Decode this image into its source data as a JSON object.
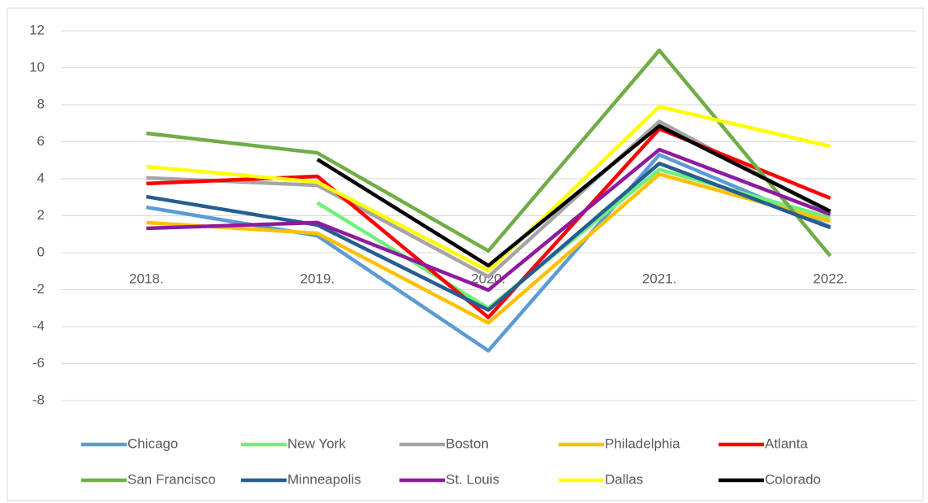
{
  "chart_data": {
    "type": "line",
    "categories": [
      "2018.",
      "2019.",
      "2020.",
      "2021.",
      "2022."
    ],
    "series": [
      {
        "name": "Chicago",
        "color": "#5b9bd5",
        "values": [
          2.46,
          0.92,
          -5.3,
          5.3,
          1.4
        ]
      },
      {
        "name": "New York",
        "color": "#70f07a",
        "values": [
          null,
          2.7,
          -3.0,
          4.5,
          1.9
        ]
      },
      {
        "name": "Boston",
        "color": "#a5a5a5",
        "values": [
          4.05,
          3.65,
          -1.3,
          7.1,
          2.15
        ]
      },
      {
        "name": "Philadelphia",
        "color": "#ffc000",
        "values": [
          1.63,
          1.05,
          -3.8,
          4.25,
          1.7
        ]
      },
      {
        "name": "Atlanta",
        "color": "#ff0000",
        "values": [
          3.74,
          4.13,
          -3.5,
          6.7,
          2.95
        ]
      },
      {
        "name": "San Francisco",
        "color": "#70ad47",
        "values": [
          6.46,
          5.4,
          0.1,
          10.95,
          -0.18
        ]
      },
      {
        "name": "Minneapolis",
        "color": "#255e91",
        "values": [
          3.03,
          1.5,
          -3.1,
          4.83,
          1.36
        ]
      },
      {
        "name": "St. Louis",
        "color": "#8e1a9e",
        "values": [
          1.32,
          1.63,
          -2.02,
          5.58,
          2.07
        ]
      },
      {
        "name": "Dallas",
        "color": "#ffff00",
        "values": [
          4.66,
          3.82,
          -0.97,
          7.9,
          5.76
        ]
      },
      {
        "name": "Colorado",
        "color": "#000000",
        "values": [
          null,
          5.05,
          -0.7,
          6.86,
          2.24
        ]
      }
    ],
    "ylim": [
      -8,
      12
    ],
    "yticks": [
      -8,
      -6,
      -4,
      -2,
      0,
      2,
      4,
      6,
      8,
      10,
      12
    ],
    "grid": true,
    "legend": "bottom"
  }
}
